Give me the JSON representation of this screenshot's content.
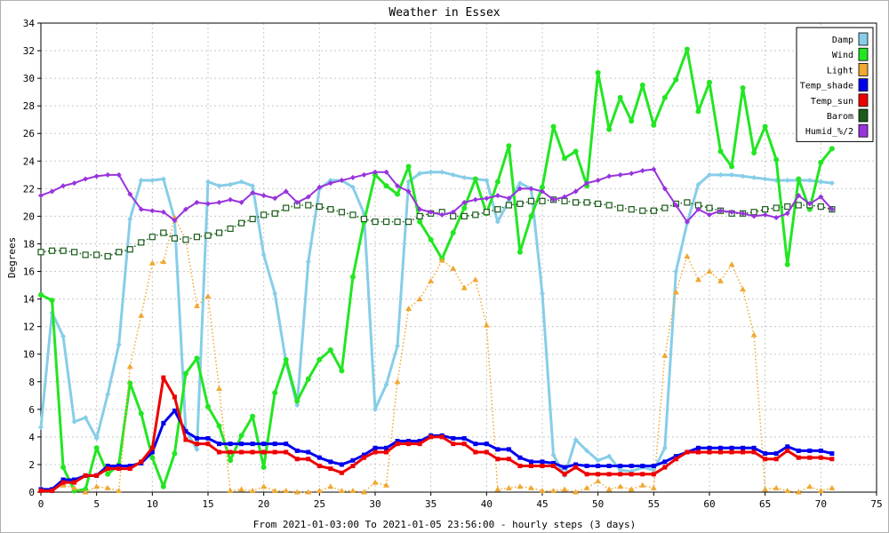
{
  "chart_data": {
    "type": "line",
    "title": "Weather in Essex",
    "xlabel": "From 2021-01-03:00 To 2021-01-05 23:56:00 - hourly steps (3 days)",
    "ylabel": "Degrees",
    "xlim": [
      0,
      75
    ],
    "ylim": [
      0,
      34
    ],
    "xticks": [
      0,
      5,
      10,
      15,
      20,
      25,
      30,
      35,
      40,
      45,
      50,
      55,
      60,
      65,
      70,
      75
    ],
    "yticks": [
      0,
      2,
      4,
      6,
      8,
      10,
      12,
      14,
      16,
      18,
      20,
      22,
      24,
      26,
      28,
      30,
      32,
      34
    ],
    "grid": true,
    "legend_position": "top-right",
    "x": [
      0,
      1,
      2,
      3,
      4,
      5,
      6,
      7,
      8,
      9,
      10,
      11,
      12,
      13,
      14,
      15,
      16,
      17,
      18,
      19,
      20,
      21,
      22,
      23,
      24,
      25,
      26,
      27,
      28,
      29,
      30,
      31,
      32,
      33,
      34,
      35,
      36,
      37,
      38,
      39,
      40,
      41,
      42,
      43,
      44,
      45,
      46,
      47,
      48,
      49,
      50,
      51,
      52,
      53,
      54,
      55,
      56,
      57,
      58,
      59,
      60,
      61,
      62,
      63,
      64,
      65,
      66,
      67,
      68,
      69,
      70,
      71
    ],
    "series": [
      {
        "name": "Damp",
        "color": "#87cde8",
        "marker": "diamond",
        "style": "solid",
        "values": [
          4.7,
          13.0,
          11.3,
          5.1,
          5.4,
          3.9,
          7.1,
          10.7,
          19.8,
          22.6,
          22.6,
          22.7,
          19.8,
          4.5,
          3.1,
          22.5,
          22.2,
          22.3,
          22.5,
          22.2,
          17.2,
          14.4,
          9.4,
          6.3,
          16.7,
          22.0,
          22.6,
          22.6,
          22.1,
          20.2,
          6.0,
          7.8,
          10.6,
          22.5,
          23.1,
          23.2,
          23.2,
          23.0,
          22.8,
          22.7,
          22.6,
          19.6,
          21.1,
          22.4,
          22.0,
          14.4,
          2.7,
          1.2,
          3.8,
          3.0,
          2.3,
          2.6,
          1.6,
          1.5,
          1.8,
          1.6,
          3.2,
          16.0,
          19.5,
          22.3,
          23.0,
          23.0,
          23.0,
          22.9,
          22.8,
          22.7,
          22.6,
          22.6,
          22.6,
          22.6,
          22.5,
          22.4
        ]
      },
      {
        "name": "Wind",
        "color": "#22e622",
        "marker": "circle",
        "style": "solid",
        "values": [
          14.3,
          13.9,
          1.8,
          0.1,
          0.2,
          3.2,
          1.3,
          2.0,
          7.9,
          5.7,
          2.5,
          0.4,
          2.8,
          8.6,
          9.7,
          6.2,
          4.8,
          2.3,
          4.1,
          5.5,
          1.8,
          7.2,
          9.6,
          6.6,
          8.2,
          9.6,
          10.3,
          8.8,
          15.6,
          19.6,
          23.0,
          22.2,
          21.6,
          23.6,
          19.6,
          18.3,
          16.9,
          18.8,
          20.6,
          22.7,
          20.2,
          22.5,
          25.1,
          17.4,
          20.0,
          22.1,
          26.5,
          24.2,
          24.7,
          22.2,
          30.4,
          26.3,
          28.6,
          26.9,
          29.5,
          26.6,
          28.6,
          29.9,
          32.1,
          27.6,
          29.7,
          24.7,
          23.6,
          29.3,
          24.6,
          26.5,
          24.1,
          16.5,
          22.7,
          20.5,
          23.9,
          24.9
        ]
      },
      {
        "name": "Light",
        "color": "#f0a830",
        "marker": "triangle",
        "style": "dotted",
        "values": [
          0.2,
          0.2,
          0.5,
          0.3,
          0.0,
          0.4,
          0.3,
          0.1,
          9.1,
          12.8,
          16.6,
          16.7,
          19.9,
          18.3,
          13.5,
          14.2,
          7.5,
          0.1,
          0.2,
          0.1,
          0.4,
          0.1,
          0.1,
          0.0,
          0.0,
          0.1,
          0.4,
          0.1,
          0.1,
          0.0,
          0.7,
          0.5,
          8.0,
          13.3,
          14.0,
          15.3,
          16.8,
          16.2,
          14.8,
          15.4,
          12.1,
          0.2,
          0.3,
          0.4,
          0.3,
          0.1,
          0.1,
          0.2,
          0.0,
          0.3,
          0.8,
          0.2,
          0.4,
          0.2,
          0.5,
          0.3,
          9.9,
          14.5,
          17.1,
          15.4,
          16.0,
          15.3,
          16.5,
          14.7,
          11.4,
          0.2,
          0.3,
          0.1,
          0.0,
          0.4,
          0.1,
          0.3
        ]
      },
      {
        "name": "Temp_shade",
        "color": "#0000ee",
        "marker": "square",
        "style": "solid",
        "width": 3,
        "values": [
          0.2,
          0.2,
          0.9,
          0.9,
          1.2,
          1.2,
          1.9,
          1.9,
          1.9,
          2.1,
          2.9,
          5.0,
          5.9,
          4.4,
          3.9,
          3.9,
          3.5,
          3.5,
          3.5,
          3.5,
          3.5,
          3.5,
          3.5,
          3.0,
          2.9,
          2.5,
          2.2,
          2.0,
          2.3,
          2.7,
          3.2,
          3.2,
          3.7,
          3.7,
          3.7,
          4.1,
          4.1,
          3.9,
          3.9,
          3.5,
          3.5,
          3.1,
          3.1,
          2.5,
          2.2,
          2.2,
          2.1,
          1.8,
          2.0,
          1.9,
          1.9,
          1.9,
          1.9,
          1.9,
          1.9,
          1.9,
          2.2,
          2.6,
          2.9,
          3.2,
          3.2,
          3.2,
          3.2,
          3.2,
          3.2,
          2.8,
          2.8,
          3.3,
          3.0,
          3.0,
          3.0,
          2.8
        ]
      },
      {
        "name": "Temp_sun",
        "color": "#ee0000",
        "marker": "square",
        "style": "solid",
        "width": 3,
        "values": [
          0.1,
          0.1,
          0.7,
          0.7,
          1.2,
          1.2,
          1.7,
          1.7,
          1.7,
          2.2,
          3.2,
          8.3,
          6.9,
          3.8,
          3.5,
          3.5,
          2.9,
          2.9,
          2.9,
          2.9,
          2.9,
          2.9,
          2.9,
          2.4,
          2.4,
          1.9,
          1.7,
          1.4,
          1.9,
          2.5,
          2.9,
          2.9,
          3.5,
          3.5,
          3.5,
          4.0,
          4.0,
          3.5,
          3.5,
          2.9,
          2.9,
          2.4,
          2.4,
          1.9,
          1.9,
          1.9,
          1.9,
          1.3,
          1.8,
          1.3,
          1.3,
          1.3,
          1.3,
          1.3,
          1.3,
          1.3,
          1.8,
          2.4,
          2.9,
          2.9,
          2.9,
          2.9,
          2.9,
          2.9,
          2.9,
          2.4,
          2.4,
          3.0,
          2.5,
          2.5,
          2.5,
          2.4
        ]
      },
      {
        "name": "Barom",
        "color": "#1a5c1a",
        "marker": "square-hollow",
        "style": "dotted",
        "values": [
          17.4,
          17.5,
          17.5,
          17.4,
          17.2,
          17.2,
          17.1,
          17.4,
          17.6,
          18.1,
          18.5,
          18.8,
          18.4,
          18.3,
          18.5,
          18.6,
          18.8,
          19.1,
          19.5,
          19.8,
          20.1,
          20.2,
          20.6,
          20.8,
          20.8,
          20.7,
          20.5,
          20.3,
          20.1,
          19.8,
          19.6,
          19.6,
          19.6,
          19.6,
          20.0,
          20.2,
          20.3,
          20.0,
          20.0,
          20.1,
          20.3,
          20.5,
          20.8,
          20.9,
          21.1,
          21.1,
          21.2,
          21.1,
          21.0,
          21.0,
          20.9,
          20.8,
          20.6,
          20.5,
          20.4,
          20.4,
          20.6,
          20.9,
          21.0,
          20.8,
          20.6,
          20.4,
          20.2,
          20.2,
          20.3,
          20.5,
          20.6,
          20.7,
          20.8,
          20.8,
          20.7,
          20.5
        ]
      },
      {
        "name": "Humid_%/2",
        "color": "#9933dd",
        "marker": "diamond",
        "style": "solid",
        "width": 2,
        "values": [
          21.5,
          21.8,
          22.2,
          22.4,
          22.7,
          22.9,
          23.0,
          23.0,
          21.6,
          20.5,
          20.4,
          20.3,
          19.7,
          20.5,
          21.0,
          20.9,
          21.0,
          21.2,
          21.0,
          21.7,
          21.5,
          21.3,
          21.8,
          21.0,
          21.4,
          22.1,
          22.4,
          22.6,
          22.8,
          23.0,
          23.2,
          23.2,
          22.2,
          21.8,
          20.5,
          20.3,
          20.1,
          20.3,
          21.0,
          21.2,
          21.3,
          21.5,
          21.3,
          22.0,
          22.0,
          21.8,
          21.2,
          21.4,
          21.8,
          22.4,
          22.6,
          22.9,
          23.0,
          23.1,
          23.3,
          23.4,
          22.0,
          20.8,
          19.6,
          20.5,
          20.1,
          20.4,
          20.3,
          20.2,
          20.0,
          20.1,
          19.9,
          20.2,
          21.5,
          20.9,
          21.4,
          20.5
        ]
      }
    ]
  }
}
